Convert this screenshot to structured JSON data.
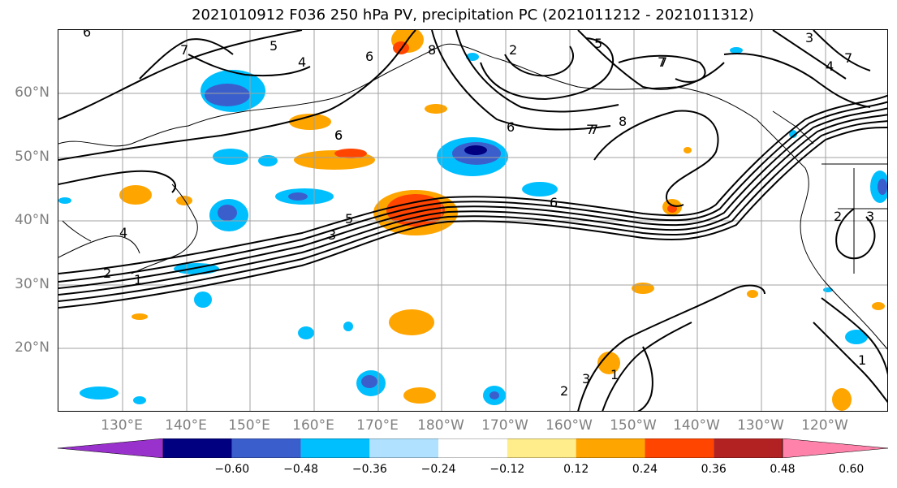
{
  "title": "2021010912 F036 250 hPa PV, precipitation PC (2021011212 - 2021011312)",
  "lat_labels": [
    "60°N",
    "50°N",
    "40°N",
    "30°N",
    "20°N"
  ],
  "lon_labels": [
    "130°E",
    "140°E",
    "150°E",
    "160°E",
    "170°E",
    "180°W",
    "170°W",
    "160°W",
    "150°W",
    "140°W",
    "130°W",
    "120°W"
  ],
  "colorbar": {
    "ticks": [
      "−0.60",
      "−0.48",
      "−0.36",
      "−0.24",
      "−0.12",
      "0.12",
      "0.24",
      "0.36",
      "0.48",
      "0.60"
    ],
    "colors": [
      "#9932CC",
      "#000080",
      "#3A5FCD",
      "#00BFFF",
      "#B0E2FF",
      "#FFFFFF",
      "#FFEC8B",
      "#FFA500",
      "#FF4500",
      "#B22222",
      "#FF82AB"
    ]
  },
  "contour_labels": [
    "6",
    "7",
    "5",
    "4",
    "6",
    "2",
    "6",
    "7",
    "7",
    "5",
    "7",
    "3",
    "4",
    "7",
    "6",
    "8",
    "7",
    "8",
    "6",
    "5",
    "3",
    "2",
    "1",
    "6",
    "4",
    "3",
    "2",
    "2",
    "3",
    "1",
    "1"
  ]
}
